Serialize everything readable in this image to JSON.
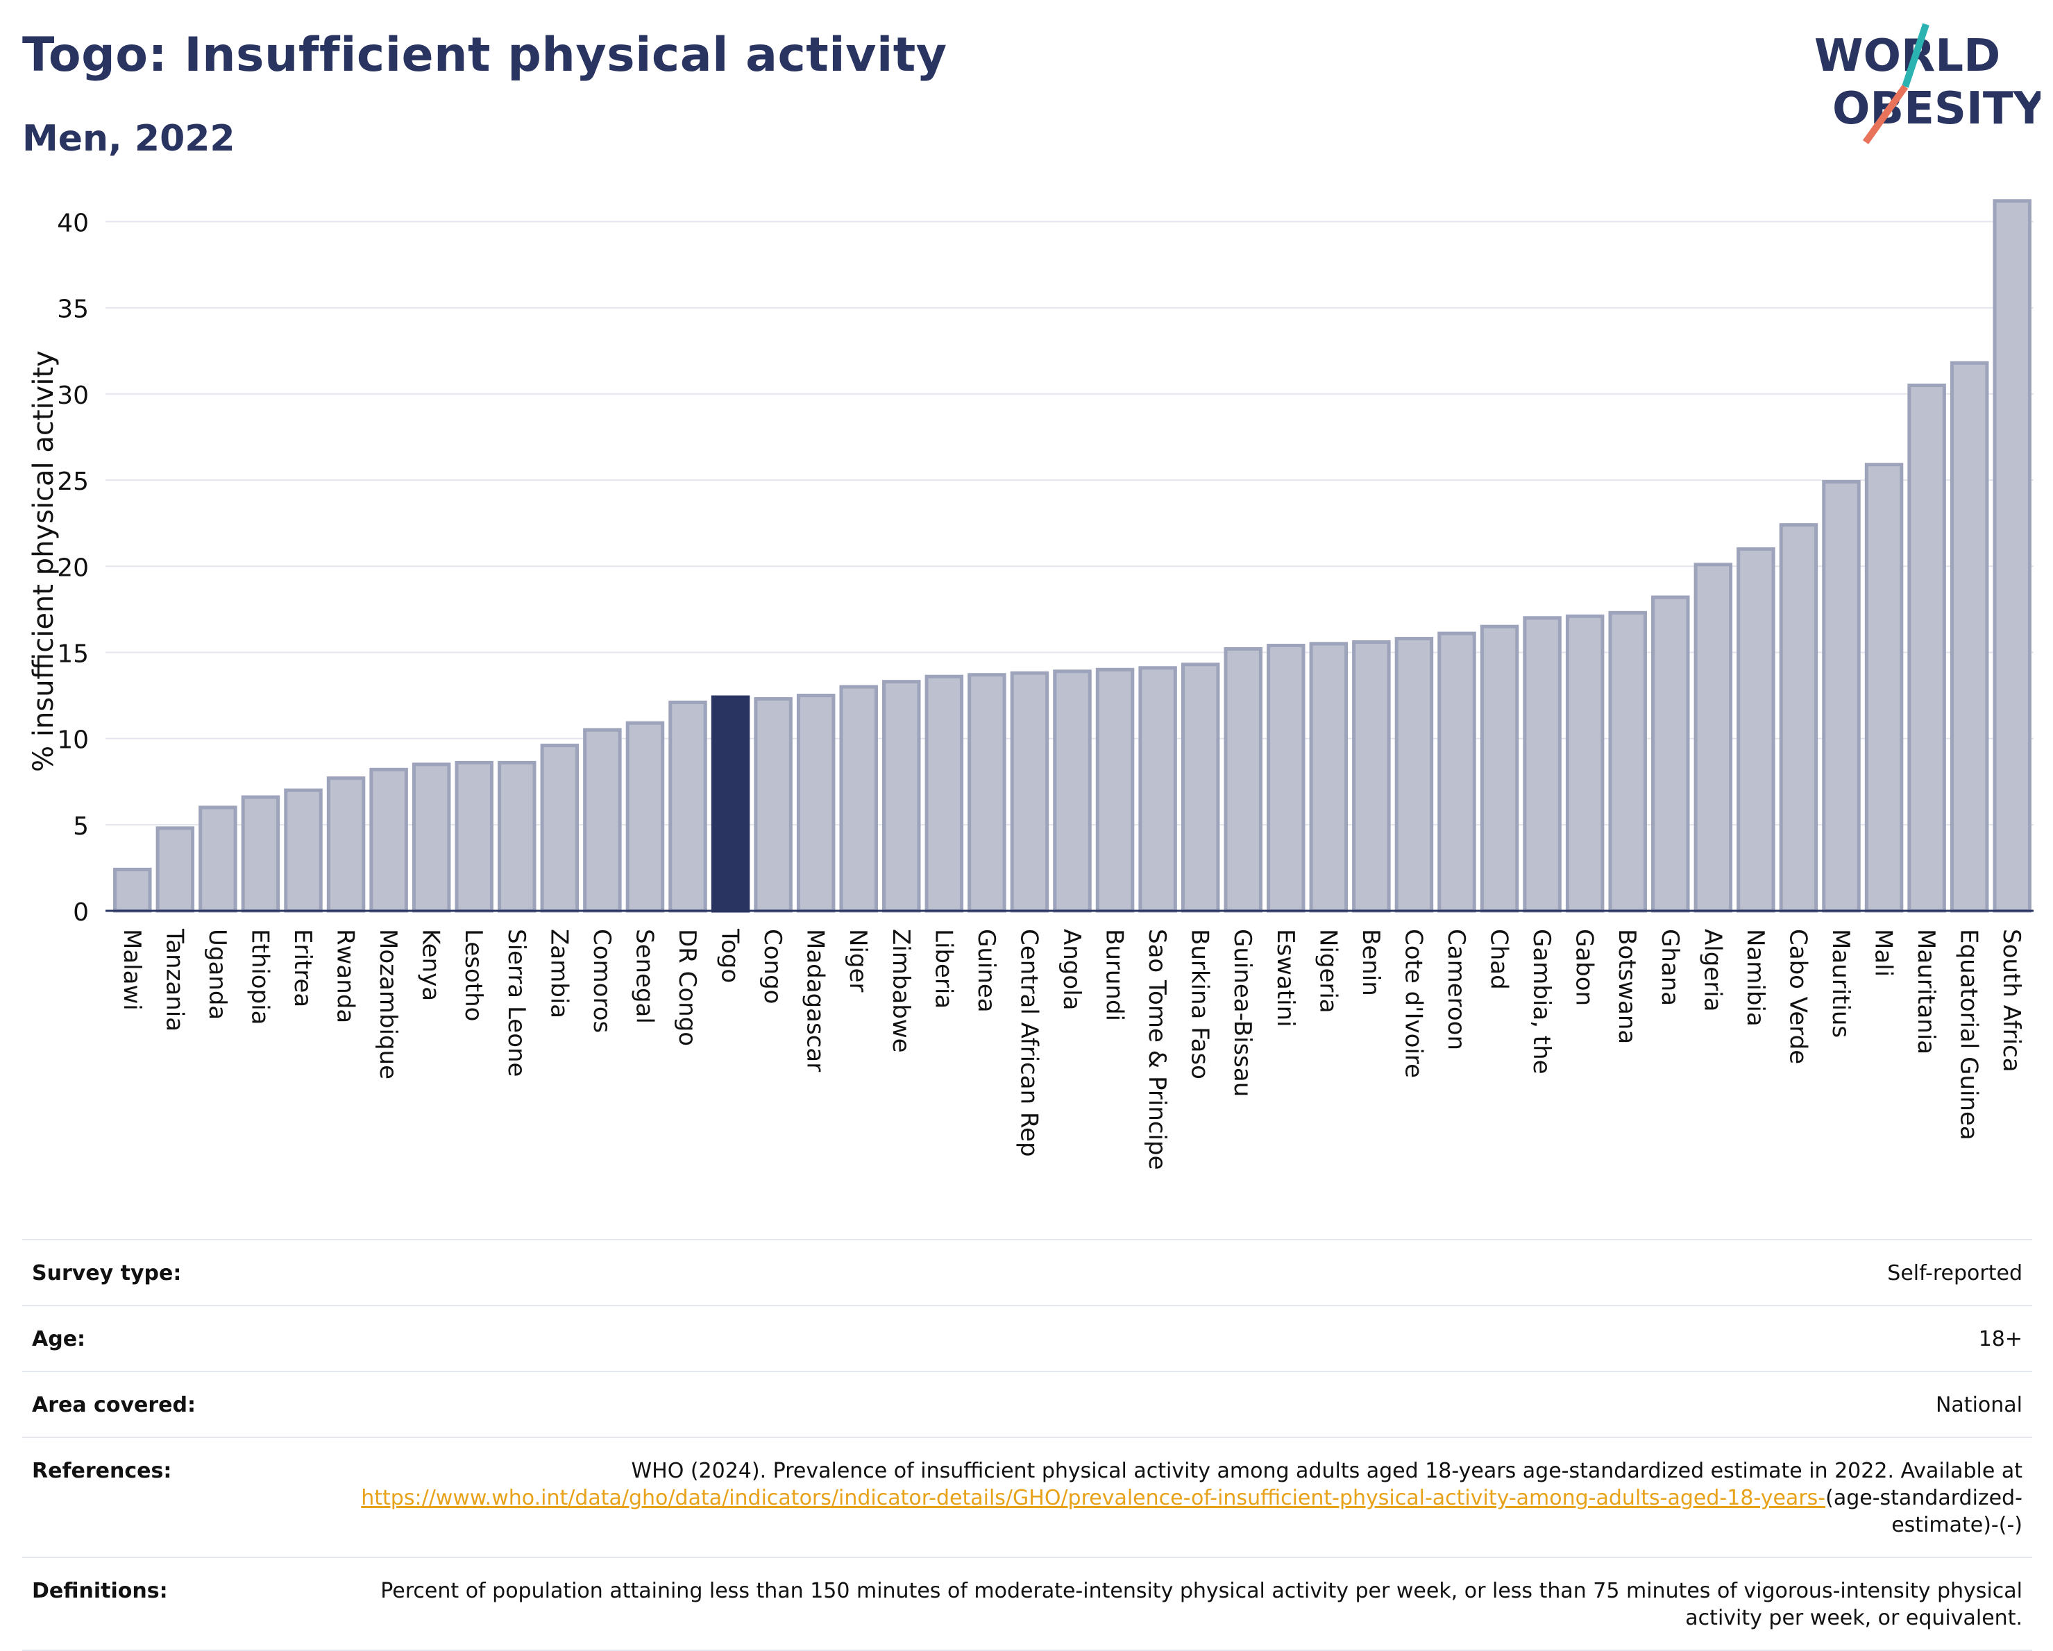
{
  "header": {
    "title": "Togo: Insufficient physical activity",
    "subtitle": "Men, 2022"
  },
  "logo": {
    "line1": "WORLD",
    "line2": "OBESITY",
    "colors": {
      "text": "#2a3460",
      "slash_top": "#2ab3b1",
      "slash_bottom": "#e8725a"
    }
  },
  "colors": {
    "bar": "#bcc0cf",
    "bar_stroke": "#9da3ba",
    "highlight": "#2a3460",
    "grid": "#e4e6ee",
    "axis": "#2a3460"
  },
  "chart_data": {
    "type": "bar",
    "ylabel": "% insufficient physical activity",
    "ylim": [
      0,
      43
    ],
    "yticks": [
      0,
      5,
      10,
      15,
      20,
      25,
      30,
      35,
      40
    ],
    "grid": true,
    "highlight": "Togo",
    "categories": [
      "Malawi",
      "Tanzania",
      "Uganda",
      "Ethiopia",
      "Eritrea",
      "Rwanda",
      "Mozambique",
      "Kenya",
      "Lesotho",
      "Sierra Leone",
      "Zambia",
      "Comoros",
      "Senegal",
      "DR Congo",
      "Togo",
      "Congo",
      "Madagascar",
      "Niger",
      "Zimbabwe",
      "Liberia",
      "Guinea",
      "Central African Rep",
      "Angola",
      "Burundi",
      "Sao Tome & Principe",
      "Burkina Faso",
      "Guinea-Bissau",
      "Eswatini",
      "Nigeria",
      "Benin",
      "Cote d'Ivoire",
      "Cameroon",
      "Chad",
      "Gambia, the",
      "Gabon",
      "Botswana",
      "Ghana",
      "Algeria",
      "Namibia",
      "Cabo Verde",
      "Mauritius",
      "Mali",
      "Mauritania",
      "Equatorial Guinea",
      "South Africa"
    ],
    "values": [
      2.4,
      4.8,
      6.0,
      6.6,
      7.0,
      7.7,
      8.2,
      8.5,
      8.6,
      8.6,
      9.6,
      10.5,
      10.9,
      12.1,
      12.4,
      12.3,
      12.5,
      13.0,
      13.3,
      13.6,
      13.7,
      13.8,
      13.9,
      14.0,
      14.1,
      14.3,
      15.2,
      15.4,
      15.5,
      15.6,
      15.8,
      16.1,
      16.5,
      17.0,
      17.1,
      17.3,
      18.2,
      20.1,
      21.0,
      22.4,
      24.9,
      25.9,
      30.5,
      31.8,
      41.2
    ]
  },
  "info": [
    {
      "label": "Survey type:",
      "value": "Self-reported"
    },
    {
      "label": "Age:",
      "value": "18+"
    },
    {
      "label": "Area covered:",
      "value": "National"
    },
    {
      "label": "References:",
      "value_text": "WHO (2024). Prevalence of insufficient physical activity among adults aged 18-years age-standardized estimate in 2022. Available at",
      "link": "https://www.who.int/data/gho/data/indicators/indicator-details/GHO/prevalence-of-insufficient-physical-activity-among-adults-aged-18-years-",
      "value_tail": "(age-standardized-estimate)-(-)"
    },
    {
      "label": "Definitions:",
      "value": "Percent of population attaining less than 150 minutes of moderate-intensity physical activity per week, or less than 75 minutes of vigorous-intensity physical activity per week, or equivalent."
    }
  ]
}
